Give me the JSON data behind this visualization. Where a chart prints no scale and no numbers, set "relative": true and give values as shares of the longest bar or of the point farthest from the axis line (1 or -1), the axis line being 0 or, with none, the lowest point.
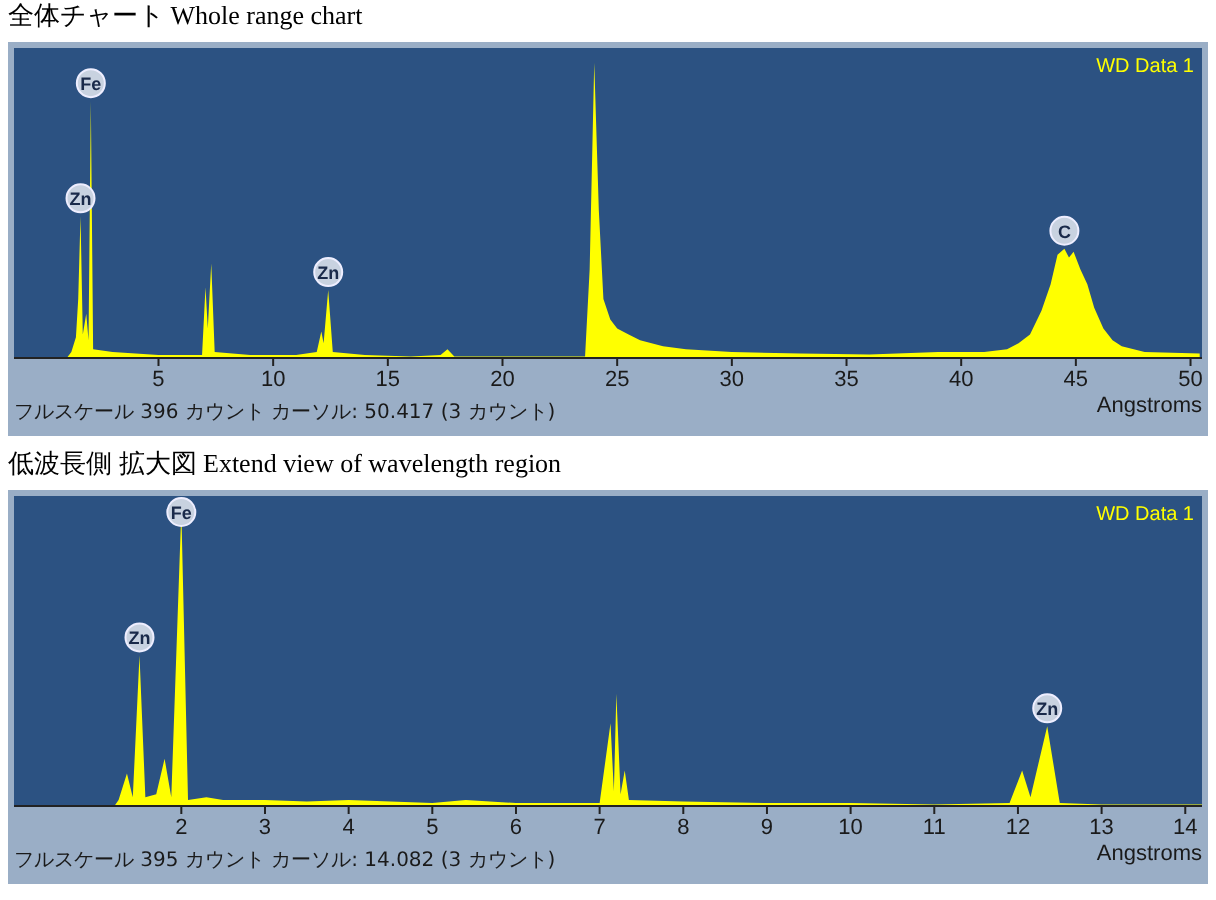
{
  "chart_data": [
    {
      "type": "area",
      "title": "全体チャート Whole range chart",
      "xlabel": "Angstroms",
      "relative": true,
      "legend": "top right",
      "xlim": [
        -1.3,
        50.5
      ],
      "xticks": [
        5,
        10,
        15,
        20,
        25,
        30,
        35,
        40,
        45,
        50
      ],
      "x": [
        1.0,
        1.2,
        1.4,
        1.5,
        1.6,
        1.7,
        1.85,
        1.95,
        2.05,
        2.15,
        3,
        4,
        5,
        6,
        6.9,
        7.05,
        7.15,
        7.3,
        7.45,
        9,
        11,
        11.9,
        12.1,
        12.2,
        12.4,
        12.6,
        14,
        16,
        17.3,
        17.6,
        17.9,
        20,
        23.6,
        23.8,
        24.0,
        24.2,
        24.4,
        24.7,
        25,
        25.5,
        26,
        27,
        28,
        30,
        33,
        36,
        39,
        41,
        42,
        42.5,
        43,
        43.5,
        43.9,
        44.2,
        44.5,
        44.7,
        44.9,
        45.2,
        45.5,
        45.8,
        46.2,
        46.6,
        47,
        48,
        50.4
      ],
      "series": [
        {
          "name": "WD Data 1",
          "color": "#ffff00",
          "values": [
            0,
            0.02,
            0.07,
            0.2,
            0.48,
            0.08,
            0.15,
            0.06,
            0.87,
            0.03,
            0.02,
            0.015,
            0.01,
            0.01,
            0.01,
            0.24,
            0.1,
            0.32,
            0.02,
            0.01,
            0.01,
            0.02,
            0.09,
            0.05,
            0.23,
            0.02,
            0.01,
            0.005,
            0.01,
            0.03,
            0.005,
            0.005,
            0.005,
            0.3,
            1,
            0.5,
            0.2,
            0.13,
            0.1,
            0.08,
            0.06,
            0.04,
            0.03,
            0.02,
            0.015,
            0.012,
            0.02,
            0.02,
            0.03,
            0.05,
            0.08,
            0.16,
            0.25,
            0.35,
            0.37,
            0.34,
            0.36,
            0.3,
            0.25,
            0.17,
            0.1,
            0.06,
            0.04,
            0.02,
            0.015
          ]
        }
      ],
      "annotations": [
        {
          "text": "Zn",
          "x": 1.6,
          "y": 0.48
        },
        {
          "text": "Fe",
          "x": 2.05,
          "y": 0.87
        },
        {
          "text": "Zn",
          "x": 12.4,
          "y": 0.23
        },
        {
          "text": "C",
          "x": 44.5,
          "y": 0.37
        },
        "フルスケール 396 カウント カーソル: 50.417 (3 カウント)"
      ]
    },
    {
      "type": "area",
      "title": "低波長側 拡大図 Extend view of wavelength region",
      "xlabel": "Angstroms",
      "relative": true,
      "legend": "top right",
      "xlim": [
        0,
        14.2
      ],
      "xticks": [
        2,
        3,
        4,
        5,
        6,
        7,
        8,
        9,
        10,
        11,
        12,
        13,
        14
      ],
      "x": [
        1.2,
        1.25,
        1.35,
        1.42,
        1.5,
        1.57,
        1.7,
        1.8,
        1.88,
        2.0,
        2.08,
        2.3,
        2.5,
        3,
        3.5,
        4,
        5,
        5.4,
        6,
        7.0,
        7.13,
        7.17,
        7.2,
        7.25,
        7.3,
        7.35,
        8,
        9,
        10,
        11,
        11.9,
        12.05,
        12.15,
        12.35,
        12.5,
        13,
        14.2
      ],
      "series": [
        {
          "name": "WD Data 1",
          "color": "#ffff00",
          "values": [
            0,
            0.02,
            0.11,
            0.03,
            0.51,
            0.03,
            0.04,
            0.16,
            0.03,
            1,
            0.02,
            0.03,
            0.02,
            0.02,
            0.015,
            0.02,
            0.01,
            0.02,
            0.01,
            0.01,
            0.28,
            0.05,
            0.38,
            0.04,
            0.12,
            0.02,
            0.015,
            0.01,
            0.01,
            0.005,
            0.01,
            0.12,
            0.03,
            0.27,
            0.01,
            0.005,
            0.005
          ]
        }
      ],
      "annotations": [
        {
          "text": "Zn",
          "x": 1.5,
          "y": 0.51
        },
        {
          "text": "Fe",
          "x": 2.0,
          "y": 1
        },
        {
          "text": "Zn",
          "x": 12.35,
          "y": 0.27
        },
        "フルスケール 395 カウント カーソル: 14.082 (3 カウント)"
      ]
    }
  ]
}
